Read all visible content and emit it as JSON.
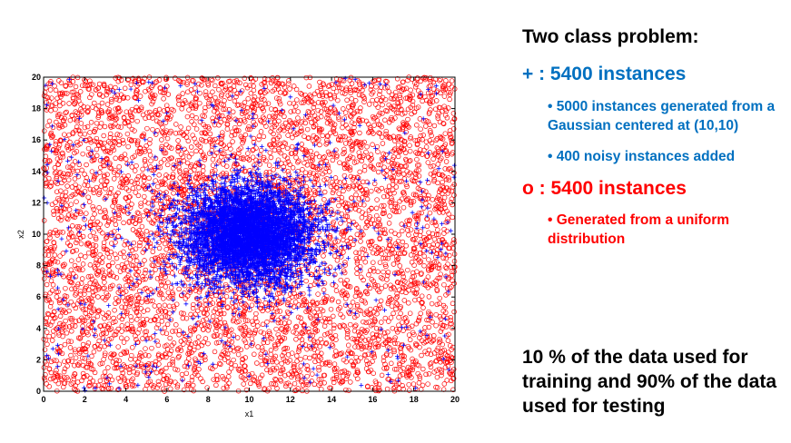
{
  "chart_data": {
    "type": "scatter",
    "xlabel": "x1",
    "ylabel": "x2",
    "xlim": [
      0,
      20
    ],
    "ylim": [
      0,
      20
    ],
    "x_ticks": [
      0,
      2,
      4,
      6,
      8,
      10,
      12,
      14,
      16,
      18,
      20
    ],
    "y_ticks": [
      0,
      2,
      4,
      6,
      8,
      10,
      12,
      14,
      16,
      18,
      20
    ],
    "grid": false,
    "series": [
      {
        "marker": "o",
        "color": "#ff0000",
        "distribution": "uniform",
        "x_range": [
          0,
          20
        ],
        "y_range": [
          0,
          20
        ],
        "count": 5400
      },
      {
        "marker": "+",
        "color": "#0000ff",
        "distribution": "gaussian",
        "center": [
          10,
          10
        ],
        "count": 5000
      },
      {
        "marker": "+",
        "color": "#0000ff",
        "distribution": "uniform",
        "x_range": [
          0,
          20
        ],
        "y_range": [
          0,
          20
        ],
        "count": 400
      }
    ]
  },
  "text": {
    "heading": "Two class problem:",
    "plus_title": "+ : 5400 instances",
    "plus_bullet_1": "• 5000 instances generated from a Gaussian centered at (10,10)",
    "plus_bullet_2": "• 400 noisy instances added",
    "o_title": "o : 5400 instances",
    "o_bullet_1": "• Generated from a uniform distribution",
    "footer": "10 % of the data used for training and 90% of the data used for testing"
  },
  "colors": {
    "plus_class": "#0070c0",
    "o_class": "#ff0000",
    "plus_marker": "#0000ff"
  }
}
